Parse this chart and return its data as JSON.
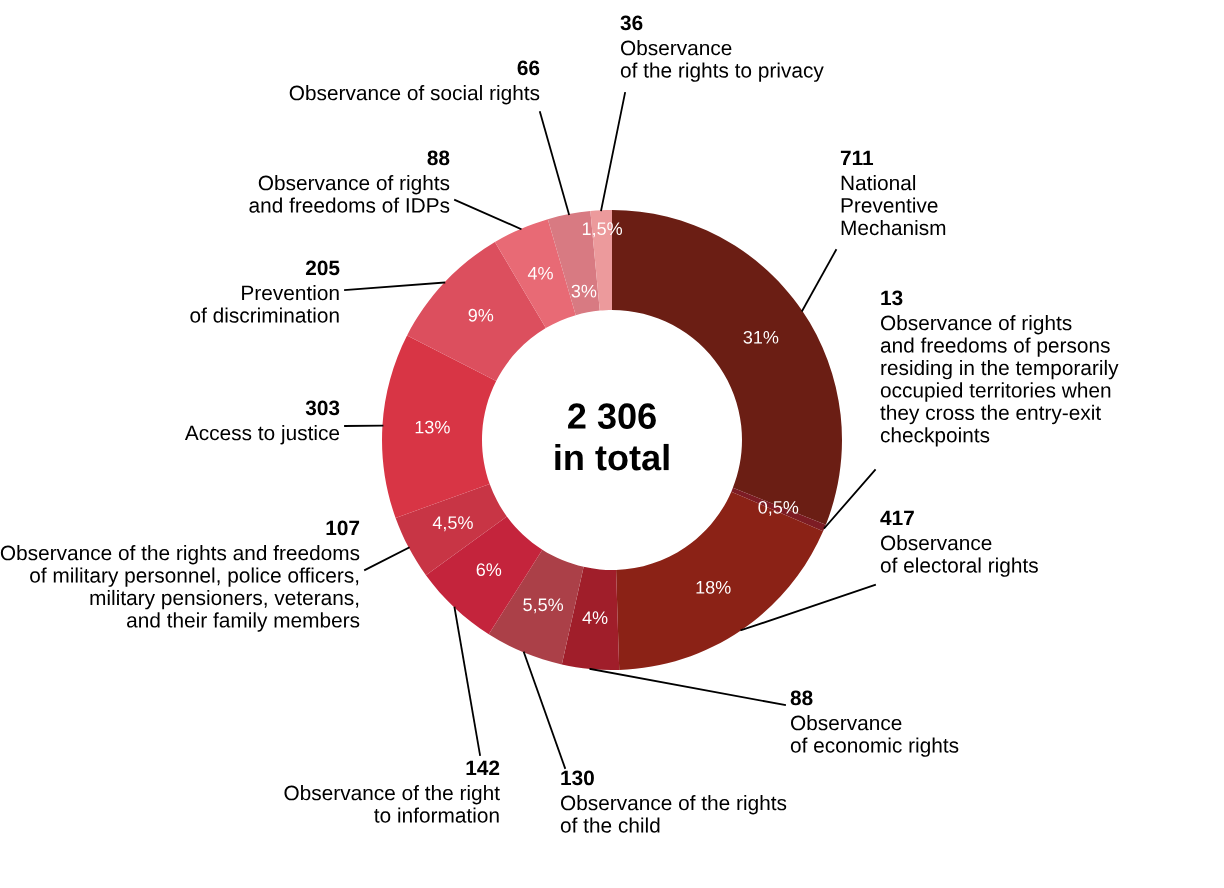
{
  "chart_data": {
    "type": "donut",
    "categories": [
      "711\nNational\nPreventive\nMechanism",
      "13\nObservance of rights\nand freedoms of persons\nresiding in the temporarily\noccupied territories when\nthey cross the entry-exit\ncheckpoints",
      "417\nObservance\nof electoral rights",
      "88\nObservance\nof economic rights",
      "130\nObservance of the rights\nof the child",
      "142\nObservance of the right\nto information",
      "107\nObservance of the rights and freedoms\nof military personnel, police officers,\nmilitary pensioners, veterans,\nand their family members",
      "303\nAccess to justice",
      "205\nPrevention\nof discrimination",
      "88\nObservance of rights\nand freedoms of IDPs",
      "66\nObservance of social rights",
      "36\nObservance\nof the rights to privacy"
    ],
    "values": [
      31,
      0.5,
      18,
      4,
      5.5,
      6,
      4.5,
      13,
      9,
      4,
      3,
      1.5
    ],
    "colors": [
      "#6b1e14",
      "#7d1c24",
      "#8b2216",
      "#a01e2a",
      "#ab4048",
      "#c4243c",
      "#c83545",
      "#d83545",
      "#dc4f5e",
      "#e86a75",
      "#d87a82",
      "#ec9a9c"
    ],
    "value_labels": [
      "31%",
      "0,5%",
      "18%",
      "4%",
      "5,5%",
      "6%",
      "4,5%",
      "13%",
      "9%",
      "4%",
      "3%",
      "1,5%"
    ],
    "annotations": [
      "2 306\nin total"
    ]
  }
}
